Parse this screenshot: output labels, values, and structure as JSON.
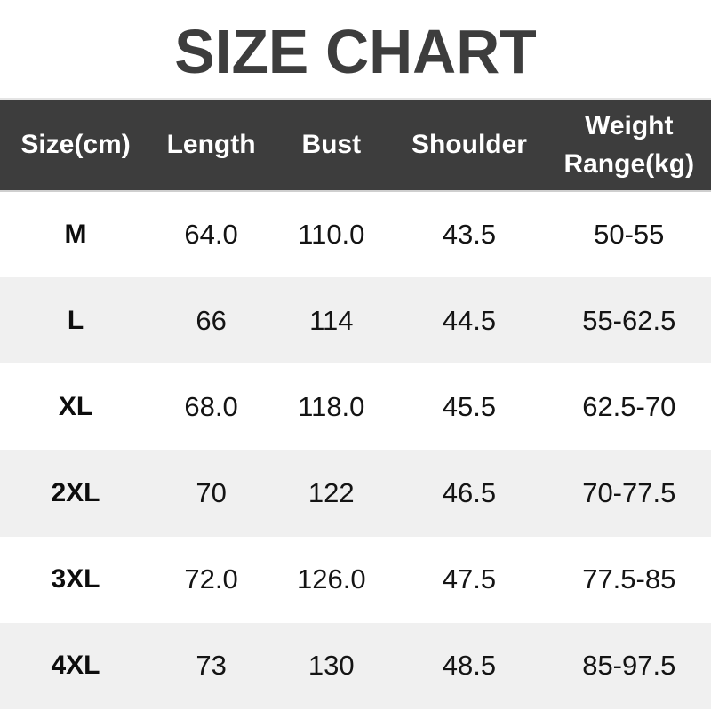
{
  "title": "SIZE CHART",
  "colors": {
    "header_bg": "#3d3d3d",
    "header_text": "#ffffff",
    "title_text": "#3d3d3d",
    "row_alt_bg": "#f0f0f0",
    "body_text": "#141414"
  },
  "table": {
    "headers": {
      "size": "Size(cm)",
      "length": "Length",
      "bust": "Bust",
      "shoulder": "Shoulder",
      "weight": "Weight Range(kg)"
    },
    "rows": [
      {
        "size": "M",
        "length": "64.0",
        "bust": "110.0",
        "shoulder": "43.5",
        "weight": "50-55"
      },
      {
        "size": "L",
        "length": "66",
        "bust": "114",
        "shoulder": "44.5",
        "weight": "55-62.5"
      },
      {
        "size": "XL",
        "length": "68.0",
        "bust": "118.0",
        "shoulder": "45.5",
        "weight": "62.5-70"
      },
      {
        "size": "2XL",
        "length": "70",
        "bust": "122",
        "shoulder": "46.5",
        "weight": "70-77.5"
      },
      {
        "size": "3XL",
        "length": "72.0",
        "bust": "126.0",
        "shoulder": "47.5",
        "weight": "77.5-85"
      },
      {
        "size": "4XL",
        "length": "73",
        "bust": "130",
        "shoulder": "48.5",
        "weight": "85-97.5"
      }
    ]
  },
  "chart_data": {
    "type": "table",
    "title": "SIZE CHART",
    "columns": [
      "Size(cm)",
      "Length",
      "Bust",
      "Shoulder",
      "Weight Range(kg)"
    ],
    "rows": [
      [
        "M",
        64.0,
        110.0,
        43.5,
        "50-55"
      ],
      [
        "L",
        66,
        114,
        44.5,
        "55-62.5"
      ],
      [
        "XL",
        68.0,
        118.0,
        45.5,
        "62.5-70"
      ],
      [
        "2XL",
        70,
        122,
        46.5,
        "70-77.5"
      ],
      [
        "3XL",
        72.0,
        126.0,
        47.5,
        "77.5-85"
      ],
      [
        "4XL",
        73,
        130,
        48.5,
        "85-97.5"
      ]
    ],
    "notes": "Garment measurements in cm; weight range in kg; header row dark gray with white text; alternating white/light-gray data rows"
  }
}
